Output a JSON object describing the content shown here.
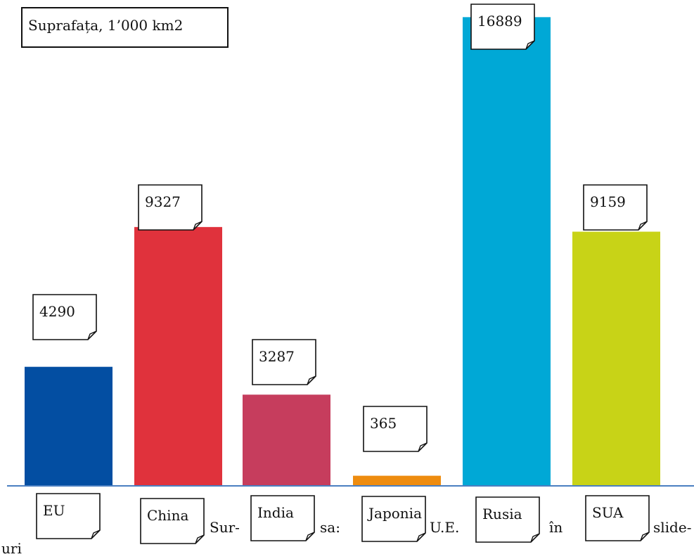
{
  "chart_data": {
    "type": "bar",
    "title": "Suprafața, 1’000 km2",
    "categories": [
      "EU",
      "China",
      "India",
      "Japonia",
      "Rusia",
      "SUA"
    ],
    "values": [
      4290,
      9327,
      3287,
      365,
      16889,
      9159
    ],
    "value_labels": [
      "4290",
      "9327",
      "3287",
      "365",
      "16889",
      "9159"
    ],
    "colors": [
      "#034ea2",
      "#e0323c",
      "#c63d5d",
      "#ee8c0f",
      "#00a8d6",
      "#c8d317"
    ],
    "axis_color": "#4a7fc1",
    "ylim": [
      0,
      17000
    ],
    "grid": false,
    "legend": "none"
  },
  "stray_text": [
    "Sur-",
    "sa:",
    "U.E.",
    "în",
    "slide-",
    "uri"
  ]
}
